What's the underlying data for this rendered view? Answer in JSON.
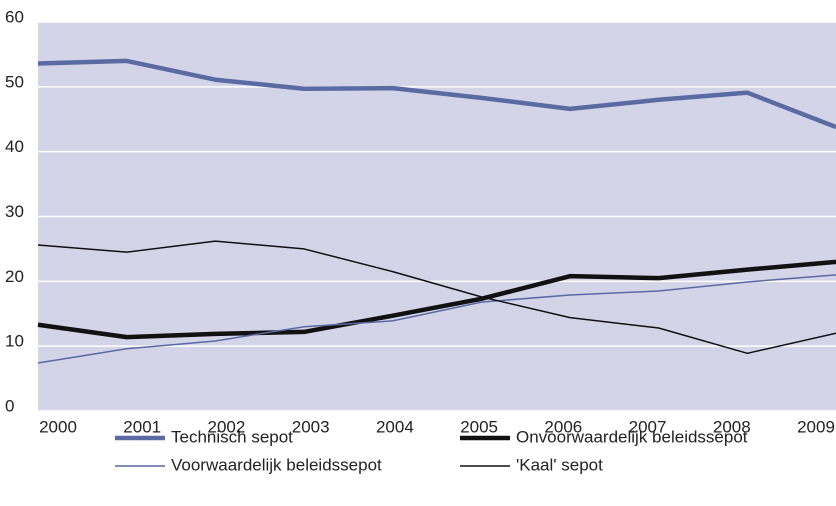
{
  "chart_data": {
    "type": "line",
    "categories": [
      "2000",
      "2001",
      "2002",
      "2003",
      "2004",
      "2005",
      "2006",
      "2007",
      "2008",
      "2009"
    ],
    "series": [
      {
        "name": "Technisch sepot",
        "color": "#5a6aa2",
        "line_width": 4.5,
        "values": [
          53.6,
          54.0,
          51.1,
          49.7,
          49.8,
          48.3,
          46.6,
          48.0,
          49.1,
          43.8
        ]
      },
      {
        "name": "Onvoorwaardelijk beleidssepot",
        "color": "#111111",
        "line_width": 4.5,
        "values": [
          13.3,
          11.4,
          11.9,
          12.2,
          14.7,
          17.3,
          20.8,
          20.5,
          21.8,
          23.0
        ]
      },
      {
        "name": "Voorwaardelijk beleidssepot",
        "color": "#5a6aa2",
        "line_width": 1.5,
        "values": [
          7.4,
          9.6,
          10.8,
          13.0,
          13.9,
          16.8,
          17.9,
          18.5,
          19.9,
          21.0
        ]
      },
      {
        "name": "'Kaal' sepot",
        "color": "#111111",
        "line_width": 1.5,
        "values": [
          25.6,
          24.5,
          26.2,
          25.0,
          21.5,
          17.6,
          14.4,
          12.8,
          8.9,
          12.0
        ]
      }
    ],
    "ylim": [
      0,
      60
    ],
    "yticks": [
      0,
      10,
      20,
      30,
      40,
      50,
      60
    ],
    "grid": true,
    "plot_background": "#d3d4e7",
    "legend": "bottom"
  }
}
